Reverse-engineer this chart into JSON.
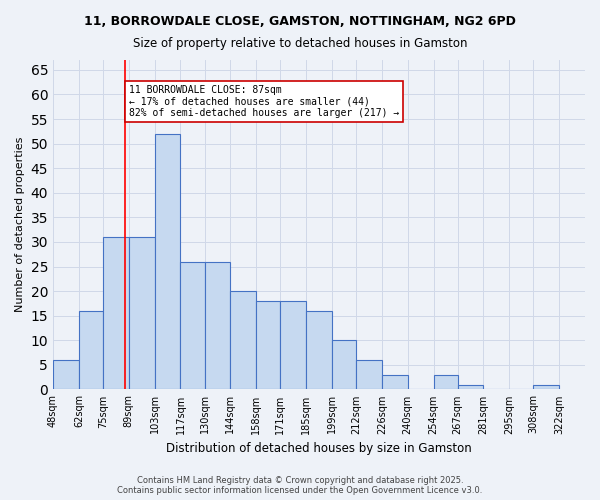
{
  "title1": "11, BORROWDALE CLOSE, GAMSTON, NOTTINGHAM, NG2 6PD",
  "title2": "Size of property relative to detached houses in Gamston",
  "xlabel": "Distribution of detached houses by size in Gamston",
  "ylabel": "Number of detached properties",
  "bar_values": [
    6,
    16,
    31,
    31,
    52,
    26,
    26,
    20,
    18,
    18,
    16,
    10,
    6,
    3,
    0,
    3,
    1,
    0,
    0,
    1
  ],
  "bin_labels": [
    "48sqm",
    "62sqm",
    "75sqm",
    "89sqm",
    "103sqm",
    "117sqm",
    "130sqm",
    "144sqm",
    "158sqm",
    "171sqm",
    "185sqm",
    "199sqm",
    "212sqm",
    "226sqm",
    "240sqm",
    "254sqm",
    "267sqm",
    "281sqm",
    "295sqm",
    "308sqm",
    "322sqm"
  ],
  "bin_edges": [
    48,
    62,
    75,
    89,
    103,
    117,
    130,
    144,
    158,
    171,
    185,
    199,
    212,
    226,
    240,
    254,
    267,
    281,
    295,
    308,
    322
  ],
  "bar_color": "#c6d9f0",
  "bar_edge_color": "#4472c4",
  "grid_color": "#d0d8e8",
  "property_line_x": 87,
  "property_line_color": "#ff0000",
  "annotation_text": "11 BORROWDALE CLOSE: 87sqm\n← 17% of detached houses are smaller (44)\n82% of semi-detached houses are larger (217) →",
  "annotation_box_color": "#ffffff",
  "annotation_box_edge": "#cc0000",
  "ylim": [
    0,
    67
  ],
  "yticks": [
    0,
    5,
    10,
    15,
    20,
    25,
    30,
    35,
    40,
    45,
    50,
    55,
    60,
    65
  ],
  "footer": "Contains HM Land Registry data © Crown copyright and database right 2025.\nContains public sector information licensed under the Open Government Licence v3.0.",
  "bg_color": "#eef2f8"
}
